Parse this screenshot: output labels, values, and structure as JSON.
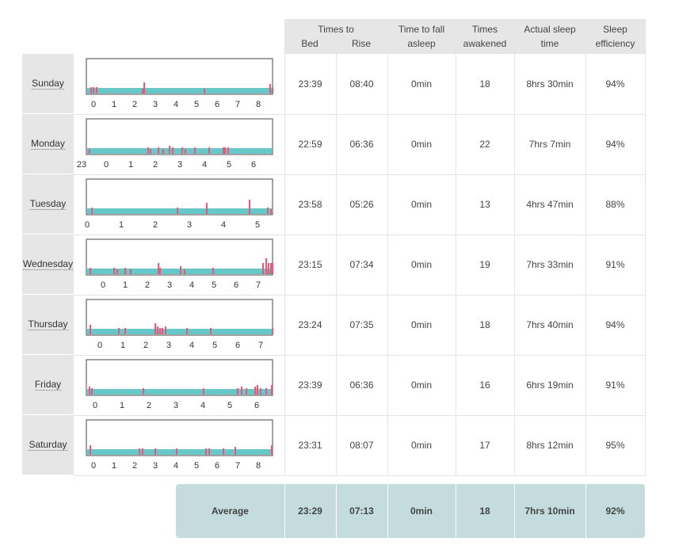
{
  "header": {
    "times_to": "Times to",
    "bed": "Bed",
    "rise": "Rise",
    "fall_asleep": [
      "Time to fall",
      "asleep"
    ],
    "awakened": [
      "Times",
      "awakened"
    ],
    "actual_sleep": [
      "Actual sleep",
      "time"
    ],
    "efficiency": [
      "Sleep",
      "efficiency"
    ]
  },
  "colors": {
    "sleep_bar": "#66c8c8",
    "wake": "#ee5577",
    "header_bg": "#e6e6e6",
    "average_bg": "#c4dcde"
  },
  "days": [
    {
      "day": "Sunday",
      "bed": "23:39",
      "rise": "08:40",
      "fall": "0min",
      "awakened": "18",
      "sleep": "8hrs 30min",
      "eff": "94%",
      "ticks": [
        "0",
        "1",
        "2",
        "3",
        "4",
        "5",
        "6",
        "7",
        "8"
      ]
    },
    {
      "day": "Monday",
      "bed": "22:59",
      "rise": "06:36",
      "fall": "0min",
      "awakened": "22",
      "sleep": "7hrs 7min",
      "eff": "94%",
      "ticks": [
        "23",
        "0",
        "1",
        "2",
        "3",
        "4",
        "5",
        "6"
      ]
    },
    {
      "day": "Tuesday",
      "bed": "23:58",
      "rise": "05:26",
      "fall": "0min",
      "awakened": "13",
      "sleep": "4hrs 47min",
      "eff": "88%",
      "ticks": [
        "0",
        "1",
        "2",
        "3",
        "4",
        "5"
      ]
    },
    {
      "day": "Wednesday",
      "bed": "23:15",
      "rise": "07:34",
      "fall": "0min",
      "awakened": "19",
      "sleep": "7hrs 33min",
      "eff": "91%",
      "ticks": [
        "0",
        "1",
        "2",
        "3",
        "4",
        "5",
        "6",
        "7"
      ]
    },
    {
      "day": "Thursday",
      "bed": "23:24",
      "rise": "07:35",
      "fall": "0min",
      "awakened": "18",
      "sleep": "7hrs 40min",
      "eff": "94%",
      "ticks": [
        "0",
        "1",
        "2",
        "3",
        "4",
        "5",
        "6",
        "7"
      ]
    },
    {
      "day": "Friday",
      "bed": "23:39",
      "rise": "06:36",
      "fall": "0min",
      "awakened": "16",
      "sleep": "6hrs 19min",
      "eff": "91%",
      "ticks": [
        "0",
        "1",
        "2",
        "3",
        "4",
        "5",
        "6"
      ]
    },
    {
      "day": "Saturday",
      "bed": "23:31",
      "rise": "08:07",
      "fall": "0min",
      "awakened": "17",
      "sleep": "8hrs 12min",
      "eff": "95%",
      "ticks": [
        "0",
        "1",
        "2",
        "3",
        "4",
        "5",
        "6",
        "7",
        "8"
      ]
    }
  ],
  "average": {
    "label": "Average",
    "bed": "23:29",
    "rise": "07:13",
    "fall": "0min",
    "awakened": "18",
    "sleep": "7hrs 10min",
    "eff": "92%"
  }
}
